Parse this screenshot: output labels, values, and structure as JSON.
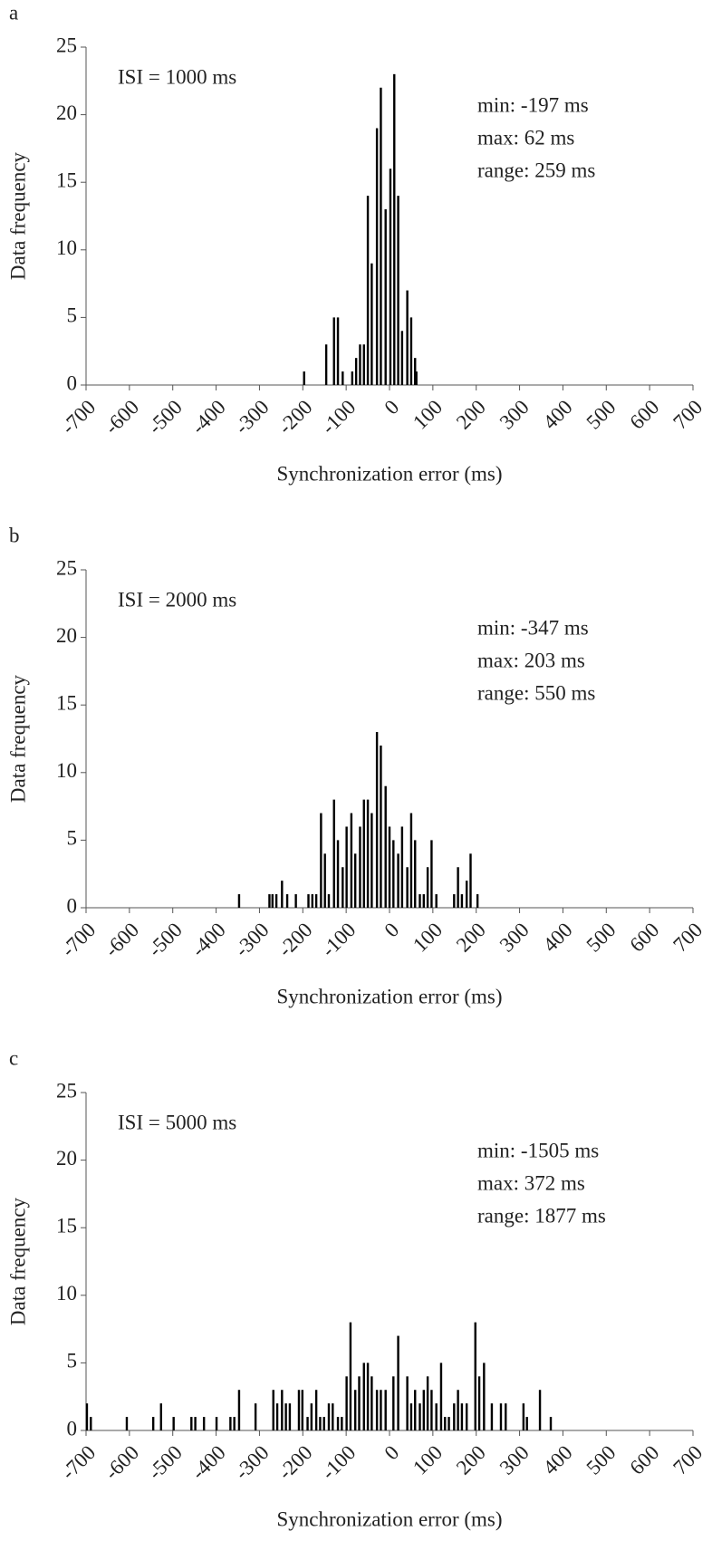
{
  "chart_data": [
    {
      "type": "bar",
      "label": "a",
      "annotation": "ISI = 1000 ms",
      "stats": [
        "min: -197 ms",
        "max: 62 ms",
        "range: 259 ms"
      ],
      "xlabel": "Synchronization error (ms)",
      "ylabel": "Data frequency",
      "color": "#000000",
      "x": [
        -197,
        -146,
        -128,
        -119,
        -108,
        -86,
        -77,
        -68,
        -59,
        -50,
        -41,
        -29,
        -20,
        -9,
        2,
        11,
        20,
        29,
        41,
        50,
        59,
        62
      ],
      "values": [
        1,
        3,
        5,
        5,
        1,
        1,
        2,
        3,
        3,
        14,
        9,
        19,
        22,
        13,
        16,
        23,
        14,
        4,
        7,
        5,
        2,
        1
      ],
      "xlim": [
        -700,
        700
      ],
      "xticks": [
        -700,
        -600,
        -500,
        -400,
        -300,
        -200,
        -100,
        0,
        100,
        200,
        300,
        400,
        500,
        600,
        700
      ],
      "ylim": [
        0,
        25
      ],
      "yticks": [
        0,
        5,
        10,
        15,
        20,
        25
      ]
    },
    {
      "type": "bar",
      "label": "b",
      "annotation": "ISI = 2000 ms",
      "stats": [
        "min: -347 ms",
        "max: 203 ms",
        "range: 550 ms"
      ],
      "xlabel": "Synchronization error (ms)",
      "ylabel": "Data frequency",
      "color": "#000000",
      "x": [
        -347,
        -277,
        -270,
        -261,
        -248,
        -236,
        -216,
        -187,
        -178,
        -169,
        -158,
        -149,
        -140,
        -128,
        -119,
        -108,
        -99,
        -88,
        -79,
        -68,
        -59,
        -50,
        -41,
        -29,
        -20,
        -9,
        0,
        9,
        20,
        29,
        41,
        50,
        59,
        70,
        79,
        88,
        97,
        108,
        149,
        158,
        167,
        178,
        187,
        203
      ],
      "values": [
        1,
        1,
        1,
        1,
        2,
        1,
        1,
        1,
        1,
        1,
        7,
        4,
        1,
        8,
        5,
        3,
        6,
        7,
        4,
        6,
        8,
        8,
        7,
        13,
        12,
        9,
        6,
        5,
        4,
        6,
        3,
        7,
        5,
        1,
        1,
        3,
        5,
        1,
        1,
        3,
        1,
        2,
        4,
        1
      ],
      "xlim": [
        -700,
        700
      ],
      "xticks": [
        -700,
        -600,
        -500,
        -400,
        -300,
        -200,
        -100,
        0,
        100,
        200,
        300,
        400,
        500,
        600,
        700
      ],
      "ylim": [
        0,
        25
      ],
      "yticks": [
        0,
        5,
        10,
        15,
        20,
        25
      ]
    },
    {
      "type": "bar",
      "label": "c",
      "annotation": "ISI = 5000 ms",
      "stats": [
        "min: -1505 ms",
        "max: 372 ms",
        "range: 1877 ms"
      ],
      "xlabel": "Synchronization error (ms)",
      "ylabel": "Data frequency",
      "color": "#000000",
      "x": [
        -698,
        -689,
        -606,
        -545,
        -527,
        -498,
        -457,
        -448,
        -428,
        -399,
        -367,
        -358,
        -347,
        -309,
        -268,
        -259,
        -248,
        -239,
        -230,
        -209,
        -201,
        -189,
        -180,
        -169,
        -160,
        -151,
        -140,
        -131,
        -119,
        -110,
        -99,
        -90,
        -79,
        -70,
        -59,
        -50,
        -41,
        -29,
        -20,
        -9,
        9,
        20,
        41,
        50,
        59,
        70,
        79,
        88,
        97,
        108,
        119,
        128,
        137,
        149,
        158,
        167,
        178,
        198,
        207,
        218,
        236,
        257,
        268,
        309,
        317,
        347,
        372
      ],
      "values": [
        2,
        1,
        1,
        1,
        2,
        1,
        1,
        1,
        1,
        1,
        1,
        1,
        3,
        2,
        3,
        2,
        3,
        2,
        2,
        3,
        3,
        1,
        2,
        3,
        1,
        1,
        2,
        2,
        1,
        1,
        4,
        8,
        3,
        4,
        5,
        5,
        4,
        3,
        3,
        3,
        4,
        7,
        4,
        2,
        3,
        2,
        3,
        4,
        3,
        2,
        5,
        1,
        1,
        2,
        3,
        2,
        2,
        8,
        4,
        5,
        2,
        2,
        2,
        2,
        1,
        3,
        1
      ],
      "xlim": [
        -700,
        700
      ],
      "xticks": [
        -700,
        -600,
        -500,
        -400,
        -300,
        -200,
        -100,
        0,
        100,
        200,
        300,
        400,
        500,
        600,
        700
      ],
      "ylim": [
        0,
        25
      ],
      "yticks": [
        0,
        5,
        10,
        15,
        20,
        25
      ]
    }
  ]
}
